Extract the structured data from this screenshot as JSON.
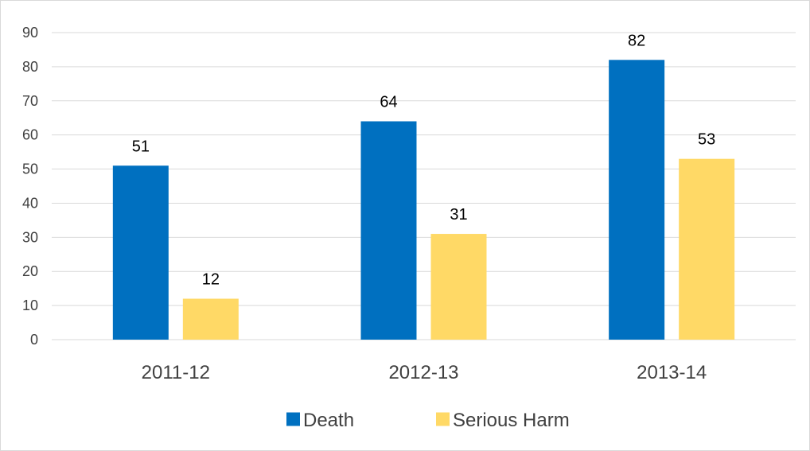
{
  "chart_data": {
    "type": "bar",
    "categories": [
      "2011-12",
      "2012-13",
      "2013-14"
    ],
    "series": [
      {
        "name": "Death",
        "values": [
          51,
          64,
          82
        ],
        "color": "#0070c0"
      },
      {
        "name": "Serious Harm",
        "values": [
          12,
          31,
          53
        ],
        "color": "#ffd966"
      }
    ],
    "title": "",
    "xlabel": "",
    "ylabel": "",
    "ylim": [
      0,
      90
    ],
    "yticks": [
      0,
      10,
      20,
      30,
      40,
      50,
      60,
      70,
      80,
      90
    ],
    "grid": true,
    "legend": "bottom-center",
    "data_labels": true
  }
}
